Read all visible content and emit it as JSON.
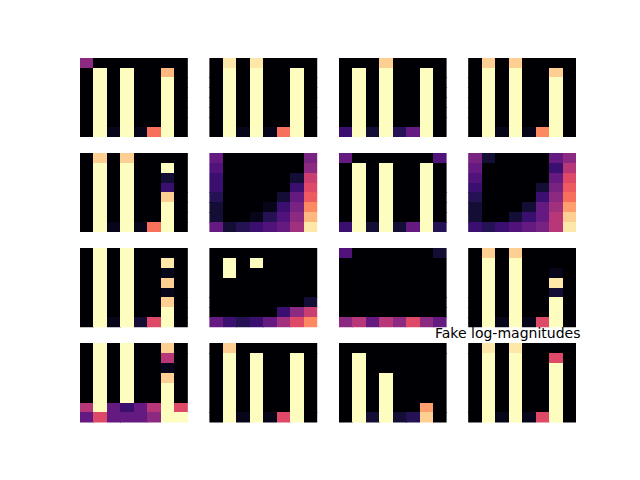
{
  "chart_data": {
    "type": "heatmap",
    "title": "Fake log-magnitudes",
    "tick_labels": false,
    "zlim": [
      0,
      1
    ],
    "cells": [
      [
        [
          0.4,
          0,
          0,
          0,
          0,
          0,
          0,
          0
        ],
        [
          0,
          1,
          0,
          1,
          0,
          0,
          0.85,
          0
        ],
        [
          0,
          1,
          0,
          1,
          0,
          0,
          1,
          0
        ],
        [
          0,
          1,
          0,
          1,
          0,
          0,
          1,
          0
        ],
        [
          0,
          1,
          0,
          1,
          0,
          0,
          1,
          0
        ],
        [
          0,
          1,
          0,
          1,
          0,
          0,
          1,
          0
        ],
        [
          0,
          1,
          0,
          1,
          0,
          0,
          1,
          0
        ],
        [
          0,
          1,
          0.05,
          1,
          0.05,
          0.7,
          1,
          0
        ]
      ],
      [
        [
          0,
          0.95,
          0,
          0.95,
          0,
          0,
          0,
          0
        ],
        [
          0,
          1,
          0,
          1,
          0,
          0,
          1,
          0
        ],
        [
          0,
          1,
          0,
          1,
          0,
          0,
          1,
          0
        ],
        [
          0,
          1,
          0,
          1,
          0,
          0,
          1,
          0
        ],
        [
          0,
          1,
          0,
          1,
          0,
          0,
          1,
          0
        ],
        [
          0,
          1,
          0,
          1,
          0,
          0,
          1,
          0
        ],
        [
          0,
          1,
          0,
          1,
          0,
          0,
          1,
          0
        ],
        [
          0,
          1,
          0.05,
          1,
          0.05,
          0.7,
          1,
          0
        ]
      ],
      [
        [
          0,
          0,
          0,
          0.9,
          0,
          0,
          0,
          0
        ],
        [
          0,
          1,
          0,
          1,
          0,
          0,
          1,
          0
        ],
        [
          0,
          1,
          0,
          1,
          0,
          0,
          1,
          0
        ],
        [
          0,
          1,
          0,
          1,
          0,
          0,
          1,
          0
        ],
        [
          0,
          1,
          0,
          1,
          0,
          0,
          1,
          0
        ],
        [
          0,
          1,
          0,
          1,
          0,
          0,
          1,
          0
        ],
        [
          0,
          1,
          0,
          1,
          0,
          0,
          1,
          0
        ],
        [
          0.2,
          1,
          0.1,
          1,
          0.15,
          0.3,
          1,
          0
        ]
      ],
      [
        [
          0,
          0.9,
          0,
          0.9,
          0,
          0,
          0,
          0
        ],
        [
          0,
          1,
          0,
          1,
          0,
          0,
          0.9,
          0
        ],
        [
          0,
          1,
          0,
          1,
          0,
          0,
          1,
          0
        ],
        [
          0,
          1,
          0,
          1,
          0,
          0,
          1,
          0
        ],
        [
          0,
          1,
          0,
          1,
          0,
          0,
          1,
          0
        ],
        [
          0,
          1,
          0,
          1,
          0,
          0,
          1,
          0
        ],
        [
          0,
          1,
          0,
          1,
          0,
          0,
          1,
          0
        ],
        [
          0,
          1,
          0.05,
          1,
          0.05,
          0.75,
          1,
          0
        ]
      ],
      [
        [
          0,
          0.9,
          0,
          0.9,
          0,
          0,
          0,
          0
        ],
        [
          0,
          1,
          0,
          1,
          0,
          0,
          1,
          0
        ],
        [
          0,
          1,
          0,
          1,
          0,
          0,
          0.1,
          0
        ],
        [
          0,
          1,
          0,
          1,
          0,
          0,
          0.2,
          0
        ],
        [
          0,
          1,
          0,
          1,
          0,
          0,
          0.9,
          0
        ],
        [
          0,
          1,
          0,
          1,
          0,
          0,
          1,
          0
        ],
        [
          0,
          1,
          0,
          1,
          0,
          0,
          1,
          0
        ],
        [
          0,
          1,
          0.05,
          1,
          0.05,
          0.7,
          1,
          0
        ]
      ],
      [
        [
          0.3,
          0,
          0,
          0,
          0,
          0,
          0,
          0.35
        ],
        [
          0.25,
          0,
          0,
          0,
          0,
          0,
          0,
          0.4
        ],
        [
          0.2,
          0,
          0,
          0,
          0,
          0,
          0.1,
          0.55
        ],
        [
          0.2,
          0,
          0,
          0,
          0,
          0,
          0.2,
          0.6
        ],
        [
          0.15,
          0,
          0,
          0,
          0,
          0.1,
          0.3,
          0.65
        ],
        [
          0.1,
          0,
          0,
          0,
          0.05,
          0.2,
          0.35,
          0.75
        ],
        [
          0.1,
          0,
          0,
          0.05,
          0.15,
          0.25,
          0.4,
          0.85
        ],
        [
          0.3,
          0.1,
          0.15,
          0.2,
          0.25,
          0.3,
          0.45,
          0.95
        ]
      ],
      [
        [
          0.3,
          0,
          0,
          0,
          0,
          0,
          0,
          0.25
        ],
        [
          0,
          1,
          0,
          1,
          0,
          0,
          1,
          0
        ],
        [
          0,
          1,
          0,
          1,
          0,
          0,
          1,
          0
        ],
        [
          0,
          1,
          0,
          1,
          0,
          0,
          1,
          0
        ],
        [
          0,
          1,
          0,
          1,
          0,
          0,
          1,
          0
        ],
        [
          0,
          1,
          0,
          1,
          0,
          0,
          1,
          0
        ],
        [
          0,
          1,
          0,
          1,
          0,
          0,
          1,
          0
        ],
        [
          0.2,
          1,
          0.1,
          1,
          0.1,
          0.3,
          1,
          0.15
        ]
      ],
      [
        [
          0.35,
          0.1,
          0,
          0,
          0,
          0,
          0.3,
          0.4
        ],
        [
          0.3,
          0,
          0,
          0,
          0,
          0,
          0.2,
          0.5
        ],
        [
          0.25,
          0,
          0,
          0,
          0,
          0,
          0.3,
          0.6
        ],
        [
          0.2,
          0,
          0,
          0,
          0,
          0.1,
          0.35,
          0.65
        ],
        [
          0.15,
          0,
          0,
          0,
          0,
          0.2,
          0.4,
          0.7
        ],
        [
          0.1,
          0,
          0,
          0,
          0.1,
          0.3,
          0.45,
          0.8
        ],
        [
          0.1,
          0,
          0,
          0.1,
          0.2,
          0.3,
          0.5,
          0.9
        ],
        [
          0.2,
          0.15,
          0.2,
          0.25,
          0.3,
          0.35,
          0.5,
          0.95
        ]
      ],
      [
        [
          0,
          1,
          0,
          1,
          0,
          0,
          0,
          0
        ],
        [
          0,
          1,
          0,
          1,
          0,
          0,
          0.95,
          0
        ],
        [
          0,
          1,
          0,
          1,
          0,
          0,
          0.05,
          0
        ],
        [
          0,
          1,
          0,
          1,
          0,
          0,
          0.9,
          0
        ],
        [
          0,
          1,
          0,
          1,
          0,
          0,
          0.05,
          0
        ],
        [
          0,
          1,
          0,
          1,
          0,
          0,
          0.9,
          0
        ],
        [
          0,
          1,
          0,
          1,
          0,
          0,
          1,
          0
        ],
        [
          0,
          1,
          0.05,
          1,
          0.1,
          0.6,
          1,
          0
        ]
      ],
      [
        [
          0,
          0,
          0,
          0,
          0,
          0,
          0,
          0
        ],
        [
          0,
          1,
          0,
          1,
          0,
          0,
          0,
          0
        ],
        [
          0,
          1,
          0,
          0,
          0,
          0,
          0,
          0
        ],
        [
          0,
          0,
          0,
          0,
          0,
          0,
          0,
          0
        ],
        [
          0,
          0,
          0,
          0,
          0,
          0,
          0,
          0
        ],
        [
          0,
          0,
          0,
          0,
          0,
          0,
          0,
          0.1
        ],
        [
          0,
          0,
          0,
          0,
          0,
          0.2,
          0.4,
          0.55
        ],
        [
          0.3,
          0.2,
          0.15,
          0.2,
          0.3,
          0.45,
          0.6,
          0.75
        ]
      ],
      [
        [
          0.25,
          0,
          0,
          0,
          0,
          0,
          0,
          0.1
        ],
        [
          0,
          0,
          0,
          0,
          0,
          0,
          0,
          0
        ],
        [
          0,
          0,
          0,
          0,
          0,
          0,
          0,
          0
        ],
        [
          0,
          0,
          0,
          0,
          0,
          0,
          0,
          0
        ],
        [
          0,
          0,
          0,
          0,
          0,
          0,
          0,
          0
        ],
        [
          0,
          0,
          0,
          0,
          0,
          0,
          0,
          0
        ],
        [
          0,
          0,
          0,
          0,
          0,
          0,
          0,
          0
        ],
        [
          0.4,
          0.5,
          0.3,
          0.5,
          0.4,
          0.6,
          0.4,
          0.3
        ]
      ],
      [
        [
          0,
          0.9,
          0,
          0.9,
          0,
          0,
          0,
          0
        ],
        [
          0,
          1,
          0,
          1,
          0,
          0,
          0,
          0
        ],
        [
          0,
          1,
          0,
          1,
          0,
          0,
          0.05,
          0
        ],
        [
          0,
          1,
          0,
          1,
          0,
          0,
          0.95,
          0
        ],
        [
          0,
          1,
          0,
          1,
          0,
          0,
          0.1,
          0
        ],
        [
          0,
          1,
          0,
          1,
          0,
          0,
          1,
          0
        ],
        [
          0,
          1,
          0,
          1,
          0,
          0,
          1,
          0
        ],
        [
          0,
          1,
          0.05,
          1,
          0.05,
          0.6,
          1,
          0
        ]
      ],
      [
        [
          0,
          1,
          0,
          1,
          0,
          0,
          0.9,
          0
        ],
        [
          0,
          1,
          0,
          1,
          0,
          0,
          0.5,
          0
        ],
        [
          0,
          1,
          0,
          1,
          0,
          0,
          0.05,
          0
        ],
        [
          0,
          1,
          0,
          1,
          0,
          0,
          0.9,
          0
        ],
        [
          0,
          1,
          0,
          1,
          0,
          0,
          1,
          0
        ],
        [
          0,
          1,
          0,
          1,
          0,
          0,
          1,
          0
        ],
        [
          0.5,
          1,
          0.3,
          0.2,
          0.3,
          0.5,
          1,
          0.6
        ],
        [
          0.3,
          0.6,
          0.3,
          0.3,
          0.3,
          0.4,
          1,
          1
        ]
      ],
      [
        [
          0,
          0.9,
          0,
          0,
          0,
          0,
          0,
          0
        ],
        [
          0,
          1,
          0,
          1,
          0,
          0,
          1,
          0
        ],
        [
          0,
          1,
          0,
          1,
          0,
          0,
          1,
          0
        ],
        [
          0,
          1,
          0,
          1,
          0,
          0,
          1,
          0
        ],
        [
          0,
          1,
          0,
          1,
          0,
          0,
          1,
          0
        ],
        [
          0,
          1,
          0,
          1,
          0,
          0,
          1,
          0
        ],
        [
          0,
          1,
          0,
          1,
          0,
          0,
          1,
          0
        ],
        [
          0,
          1,
          0.05,
          1,
          0.05,
          0.6,
          1,
          0
        ]
      ],
      [
        [
          0,
          0,
          0,
          0,
          0,
          0,
          0,
          0
        ],
        [
          0,
          1,
          0,
          0,
          0,
          0,
          0,
          0
        ],
        [
          0,
          1,
          0,
          0,
          0,
          0,
          0,
          0
        ],
        [
          0,
          1,
          0,
          1,
          0,
          0,
          0,
          0
        ],
        [
          0,
          1,
          0,
          1,
          0,
          0,
          0,
          0
        ],
        [
          0,
          1,
          0,
          1,
          0,
          0,
          0,
          0
        ],
        [
          0,
          1,
          0,
          1,
          0,
          0,
          0.8,
          0
        ],
        [
          0,
          1,
          0.1,
          1,
          0.1,
          0.15,
          0.9,
          0
        ]
      ],
      [
        [
          0,
          0.95,
          0,
          0.95,
          0,
          0,
          0,
          0
        ],
        [
          0,
          1,
          0,
          1,
          0,
          0,
          0.6,
          0
        ],
        [
          0,
          1,
          0,
          1,
          0,
          0,
          1,
          0
        ],
        [
          0,
          1,
          0,
          1,
          0,
          0,
          1,
          0
        ],
        [
          0,
          1,
          0,
          1,
          0,
          0,
          1,
          0
        ],
        [
          0,
          1,
          0,
          1,
          0,
          0,
          1,
          0
        ],
        [
          0,
          1,
          0,
          1,
          0,
          0,
          1,
          0
        ],
        [
          0,
          1,
          0.05,
          1,
          0.05,
          0.6,
          1,
          0
        ]
      ]
    ]
  }
}
